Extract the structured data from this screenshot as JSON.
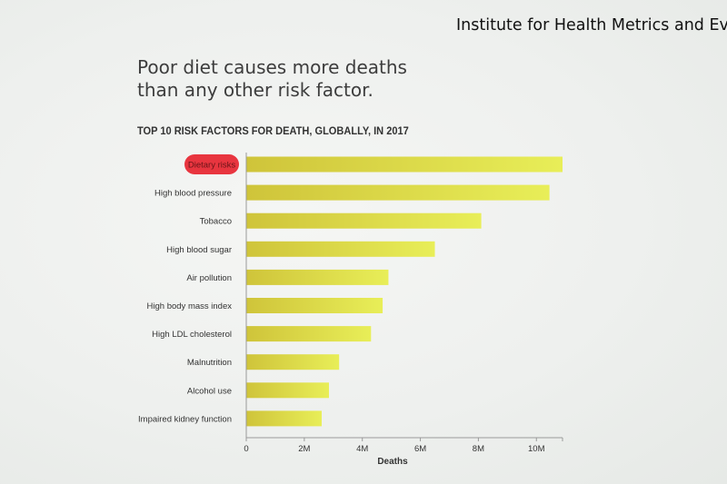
{
  "source": "Institute for Health Metrics and Eva",
  "headline": {
    "line1": "Poor diet causes more deaths",
    "line2": "than any other risk factor."
  },
  "chart_data": {
    "type": "bar",
    "orientation": "horizontal",
    "title": "TOP 10 RISK FACTORS FOR DEATH, GLOBALLY, IN 2017",
    "xlabel": "Deaths",
    "ylabel": "",
    "categories": [
      "Dietary risks",
      "High blood pressure",
      "Tobacco",
      "High blood sugar",
      "Air pollution",
      "High body mass index",
      "High LDL cholesterol",
      "Malnutrition",
      "Alcohol use",
      "Impaired kidney function"
    ],
    "values": [
      10900000,
      10450000,
      8100000,
      6500000,
      4900000,
      4700000,
      4300000,
      3200000,
      2850000,
      2600000
    ],
    "xlim": [
      0,
      10900000
    ],
    "xticks": [
      0,
      2000000,
      4000000,
      6000000,
      8000000,
      10000000
    ],
    "xtick_labels": [
      "0",
      "2M",
      "4M",
      "6M",
      "8M",
      "10M"
    ],
    "highlighted_category": "Dietary risks",
    "grid": false,
    "colors": {
      "bar_start": "#cfc43a",
      "bar_end": "#e8ee58",
      "highlight": "#e8353f",
      "highlight_text": "#6b1418",
      "axis": "#9a9a9a",
      "label_text": "#333333"
    }
  }
}
